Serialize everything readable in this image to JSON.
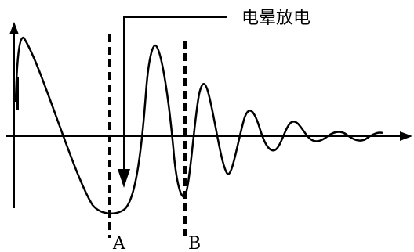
{
  "callout": {
    "label": "电晕放电"
  },
  "markers": {
    "a_label": "A",
    "b_label": "B"
  },
  "colors": {
    "ink": "#000000",
    "background": "#ffffff"
  }
}
